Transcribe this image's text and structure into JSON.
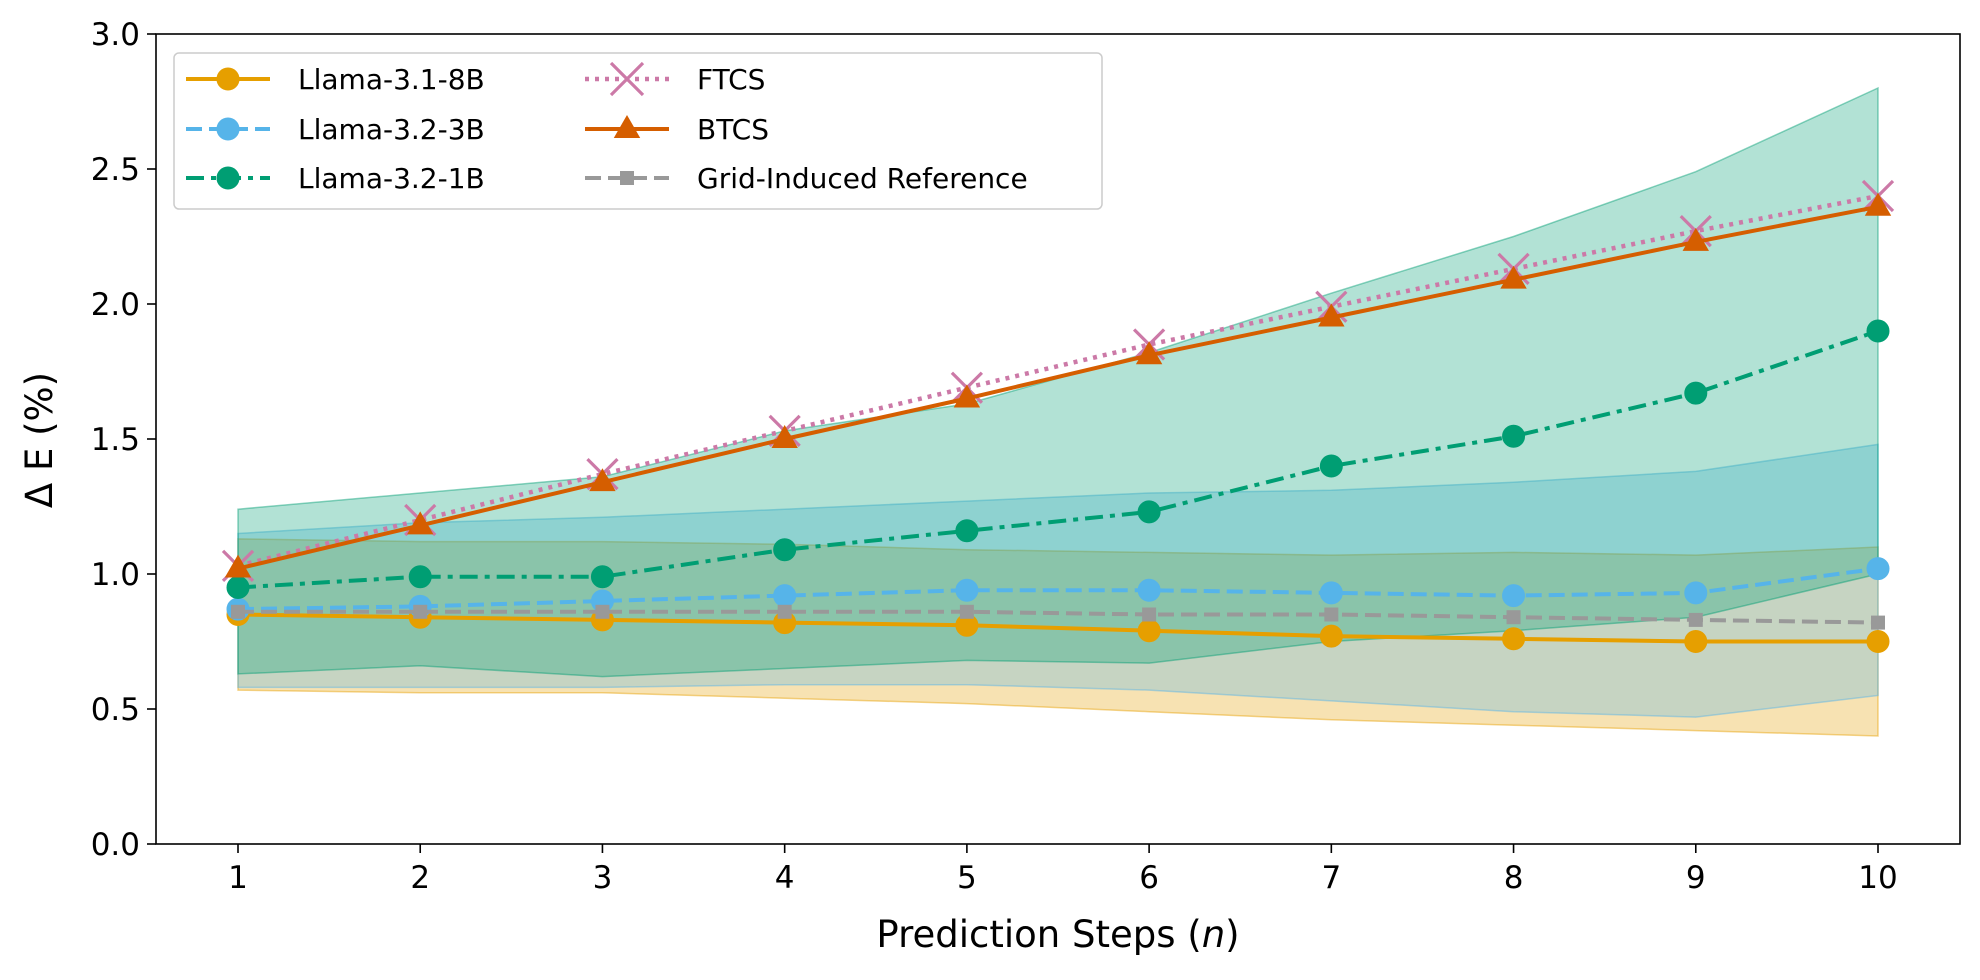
{
  "chart_data": {
    "type": "line",
    "title": "",
    "xlabel": "Prediction Steps",
    "xlabel_var": "n",
    "ylabel": "Δ E (%)",
    "x": [
      1,
      2,
      3,
      4,
      5,
      6,
      7,
      8,
      9,
      10
    ],
    "xlim": [
      0.55,
      10.45
    ],
    "ylim": [
      0.0,
      3.0
    ],
    "yticks": [
      "0.0",
      "0.5",
      "1.0",
      "1.5",
      "2.0",
      "2.5",
      "3.0"
    ],
    "xticks": [
      "1",
      "2",
      "3",
      "4",
      "5",
      "6",
      "7",
      "8",
      "9",
      "10"
    ],
    "grid": false,
    "legend_position": "top-left",
    "bands": [
      {
        "name": "Llama-3.1-8B band",
        "color": "#E69F00",
        "lower": [
          0.57,
          0.56,
          0.56,
          0.54,
          0.52,
          0.49,
          0.46,
          0.44,
          0.42,
          0.4
        ],
        "upper": [
          1.13,
          1.12,
          1.12,
          1.11,
          1.09,
          1.08,
          1.07,
          1.08,
          1.07,
          1.1
        ]
      },
      {
        "name": "Llama-3.2-3B band",
        "color": "#56B4E9",
        "lower": [
          0.58,
          0.58,
          0.58,
          0.59,
          0.59,
          0.57,
          0.53,
          0.49,
          0.47,
          0.55
        ],
        "upper": [
          1.15,
          1.19,
          1.21,
          1.24,
          1.27,
          1.3,
          1.31,
          1.34,
          1.38,
          1.48
        ]
      },
      {
        "name": "Llama-3.2-1B band",
        "color": "#009E73",
        "lower": [
          0.63,
          0.66,
          0.62,
          0.65,
          0.68,
          0.67,
          0.75,
          0.79,
          0.84,
          1.0
        ],
        "upper": [
          1.24,
          1.3,
          1.36,
          1.53,
          1.63,
          1.82,
          2.04,
          2.25,
          2.49,
          2.8
        ]
      }
    ],
    "series": [
      {
        "name": "Llama-3.1-8B",
        "color": "#E69F00",
        "style": "solid",
        "marker": "circle",
        "values": [
          0.85,
          0.84,
          0.83,
          0.82,
          0.81,
          0.79,
          0.77,
          0.76,
          0.75,
          0.75
        ]
      },
      {
        "name": "Llama-3.2-3B",
        "color": "#56B4E9",
        "style": "dashed",
        "marker": "circle",
        "values": [
          0.87,
          0.88,
          0.9,
          0.92,
          0.94,
          0.94,
          0.93,
          0.92,
          0.93,
          1.02
        ]
      },
      {
        "name": "Llama-3.2-1B",
        "color": "#009E73",
        "style": "dashdot",
        "marker": "circle",
        "values": [
          0.95,
          0.99,
          0.99,
          1.09,
          1.16,
          1.23,
          1.4,
          1.51,
          1.67,
          1.9
        ]
      },
      {
        "name": "FTCS",
        "color": "#CC79A7",
        "style": "dotted",
        "marker": "x",
        "values": [
          1.03,
          1.2,
          1.37,
          1.53,
          1.69,
          1.85,
          1.99,
          2.13,
          2.27,
          2.4
        ]
      },
      {
        "name": "BTCS",
        "color": "#D55E00",
        "style": "solid",
        "marker": "triangle",
        "values": [
          1.02,
          1.18,
          1.34,
          1.5,
          1.65,
          1.81,
          1.95,
          2.09,
          2.23,
          2.36
        ]
      },
      {
        "name": "Grid-Induced Reference",
        "color": "#999999",
        "style": "dashed",
        "marker": "square",
        "values": [
          0.86,
          0.86,
          0.86,
          0.86,
          0.86,
          0.85,
          0.85,
          0.84,
          0.83,
          0.82
        ]
      }
    ]
  }
}
